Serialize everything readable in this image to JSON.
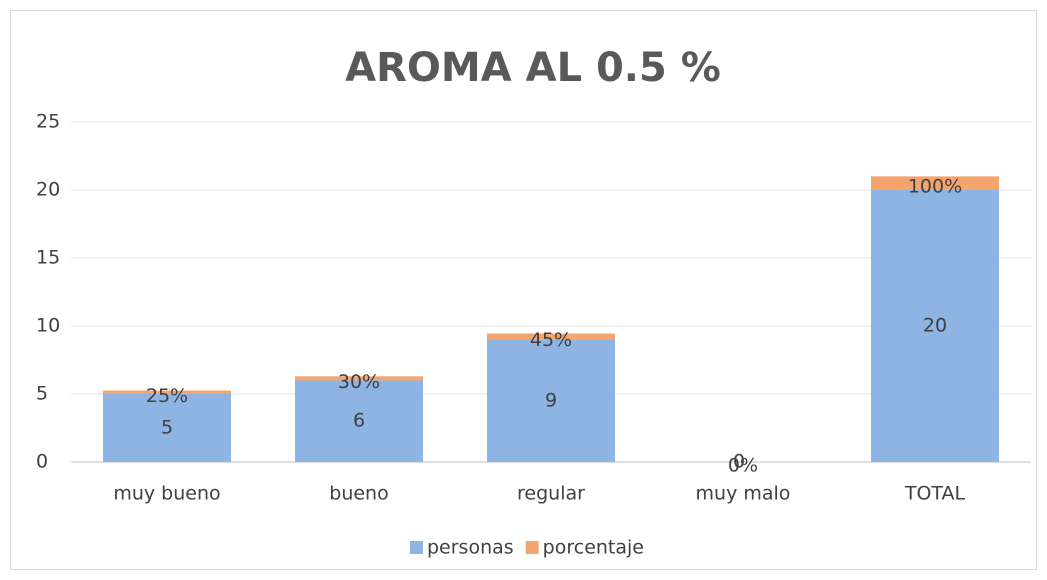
{
  "chart_data": {
    "type": "stacked_bar",
    "title": "AROMA AL 0.5 %",
    "categories": [
      "muy bueno",
      "bueno",
      "regular",
      "muy malo",
      "TOTAL"
    ],
    "series": [
      {
        "name": "personas",
        "color": "#8db4e2",
        "values": [
          5,
          6,
          9,
          0,
          20
        ]
      },
      {
        "name": "porcentaje",
        "color": "#f4a46c",
        "values": [
          0.25,
          0.3,
          0.45,
          0,
          1
        ],
        "value_labels": [
          "25%",
          "30%",
          "45%",
          "0%",
          "100%"
        ]
      }
    ],
    "ylim": [
      0,
      25
    ],
    "yticks": [
      0,
      5,
      10,
      15,
      20,
      25
    ],
    "grid": true,
    "legend": "bottom"
  }
}
